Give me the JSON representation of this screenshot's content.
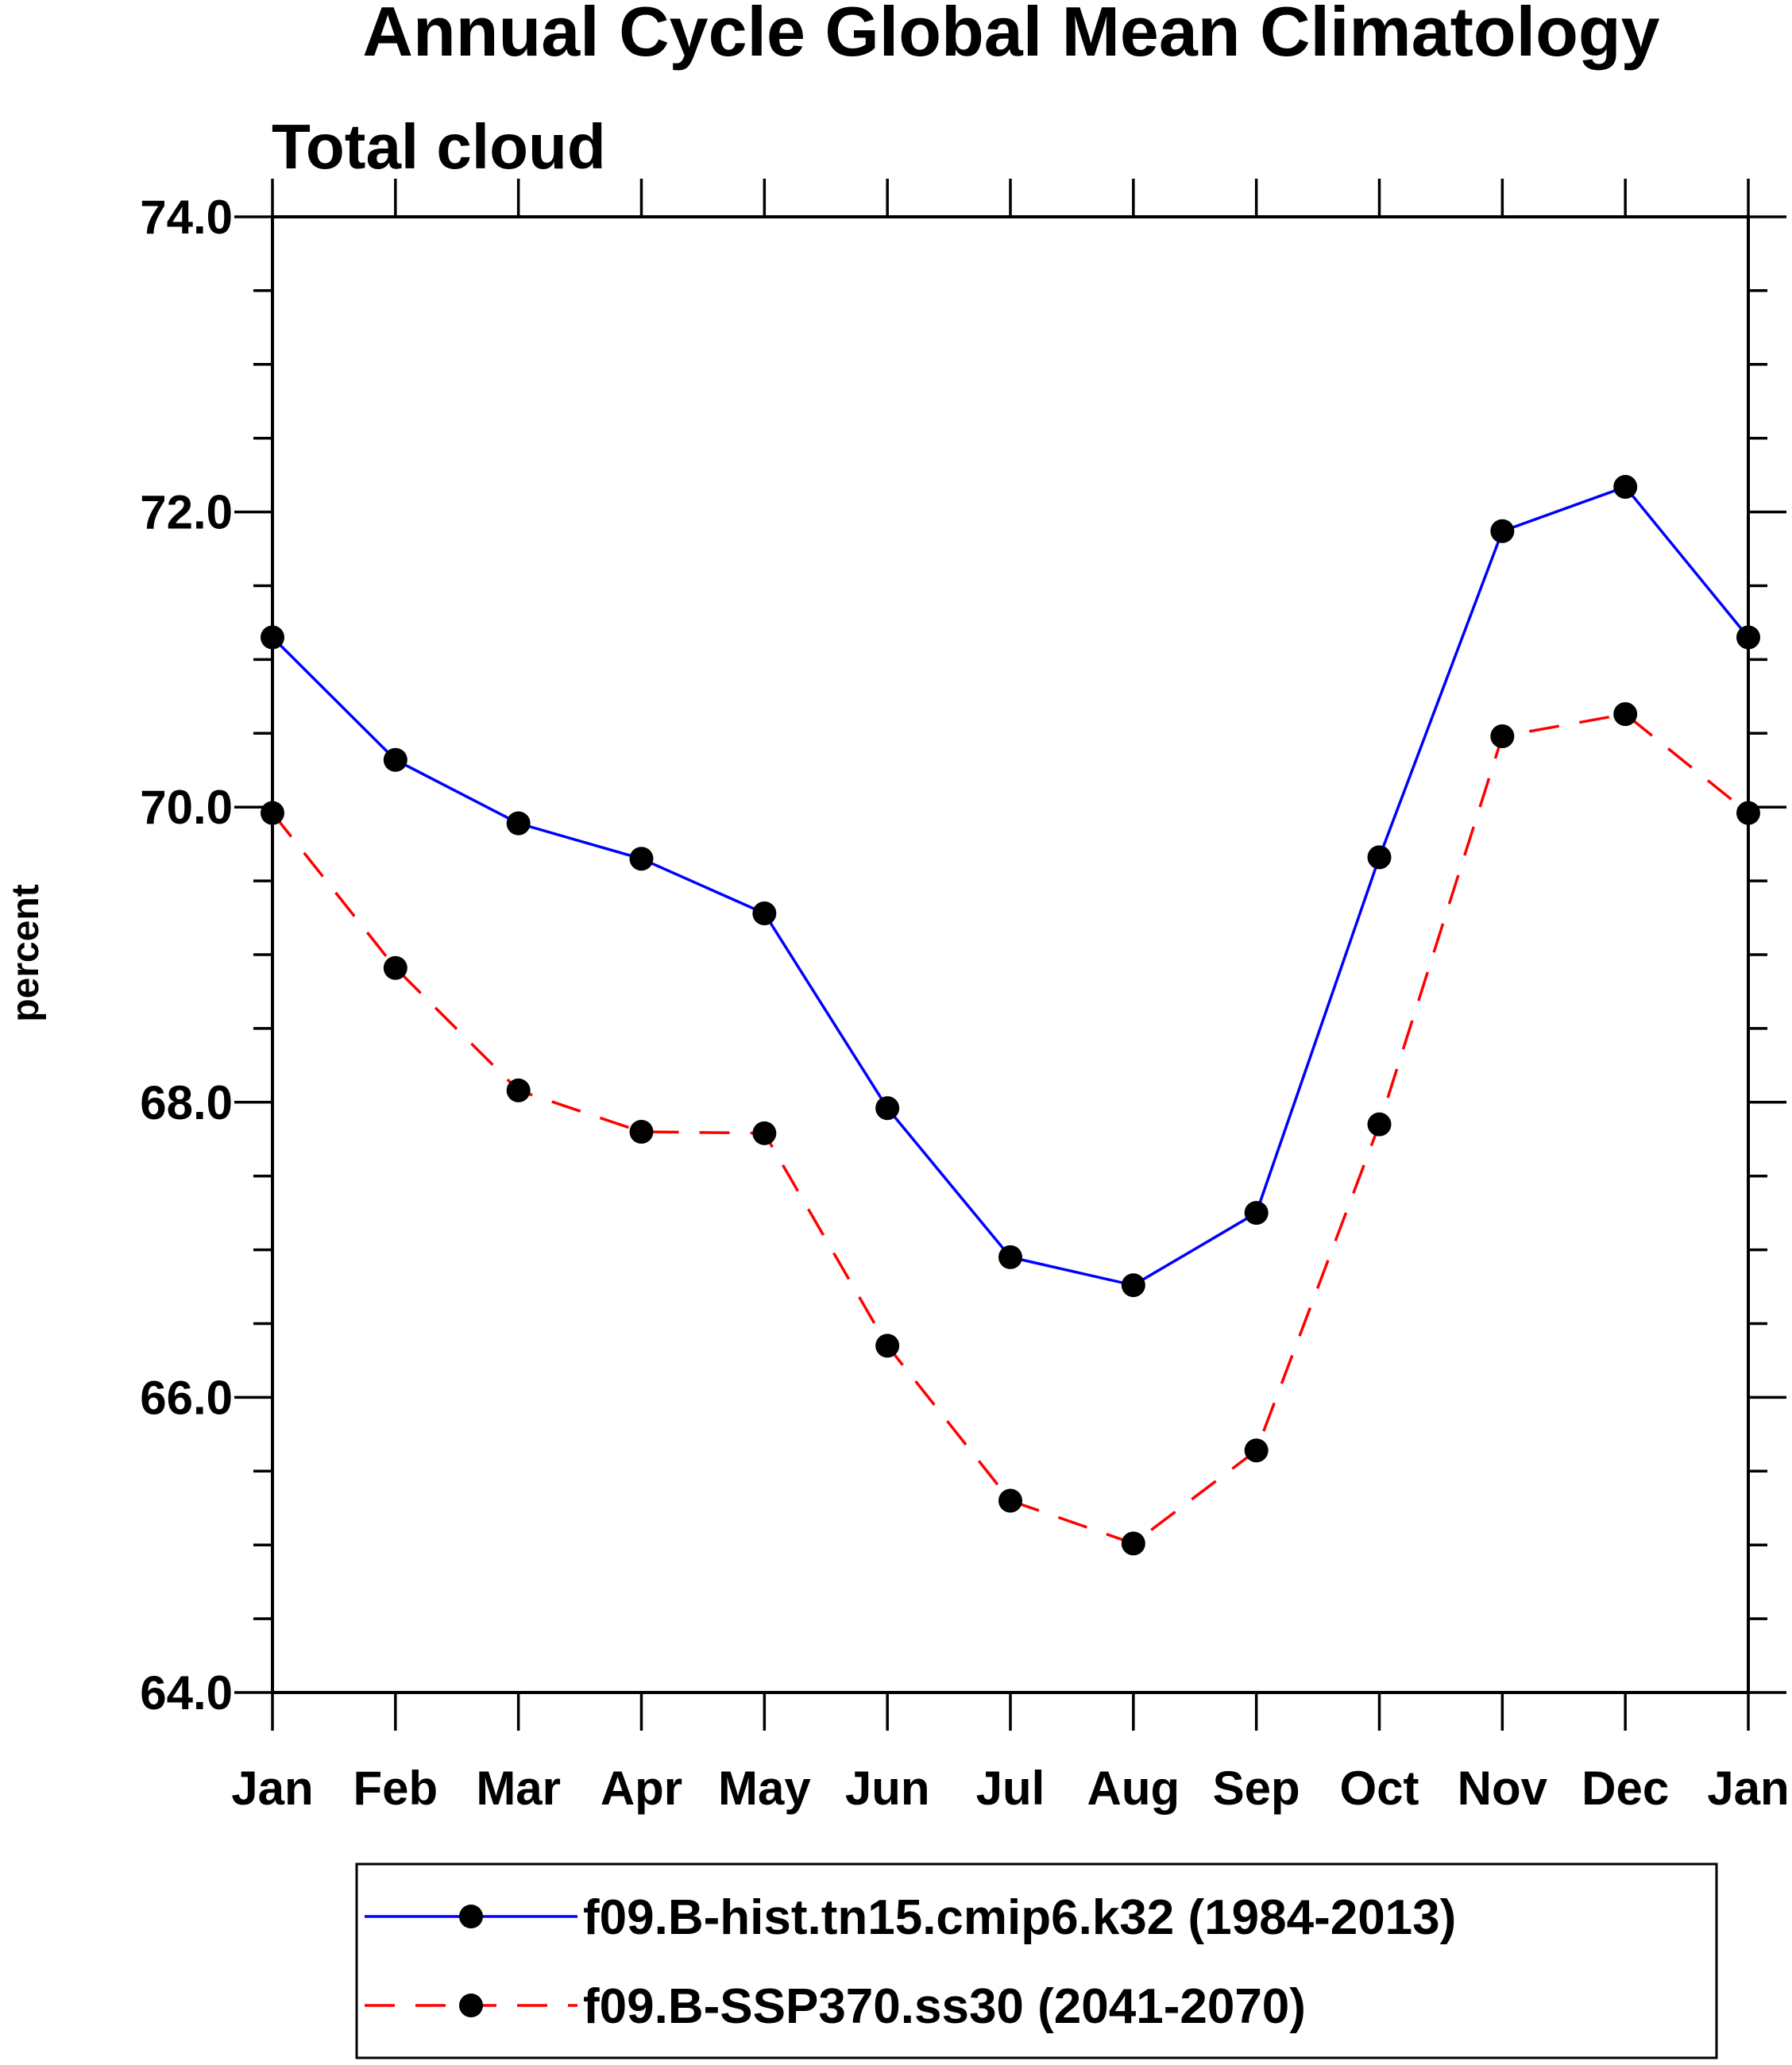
{
  "chart_data": {
    "type": "line",
    "title": "Annual Cycle Global Mean Climatology",
    "subtitle": "Total cloud",
    "xlabel": "",
    "ylabel": "percent",
    "categories": [
      "Jan",
      "Feb",
      "Mar",
      "Apr",
      "May",
      "Jun",
      "Jul",
      "Aug",
      "Sep",
      "Oct",
      "Nov",
      "Dec",
      "Jan"
    ],
    "ylim": [
      64,
      74
    ],
    "yticks": [
      "64.0",
      "66.0",
      "68.0",
      "70.0",
      "72.0",
      "74.0"
    ],
    "grid": false,
    "legend_position": "bottom",
    "series": [
      {
        "name": "f09.B-hist.tn15.cmip6.k32 (1984-2013)",
        "color": "#0000ff",
        "dash": "solid",
        "values": [
          71.15,
          70.32,
          69.89,
          69.65,
          69.28,
          67.96,
          66.95,
          66.76,
          67.25,
          69.66,
          71.87,
          72.17,
          71.15
        ]
      },
      {
        "name": "f09.B-SSP370.ss30 (2041-2070)",
        "color": "#ff0000",
        "dash": "dashed",
        "values": [
          69.96,
          68.91,
          68.08,
          67.8,
          67.79,
          66.35,
          65.3,
          65.01,
          65.64,
          67.85,
          70.48,
          70.63,
          69.96
        ]
      }
    ]
  }
}
